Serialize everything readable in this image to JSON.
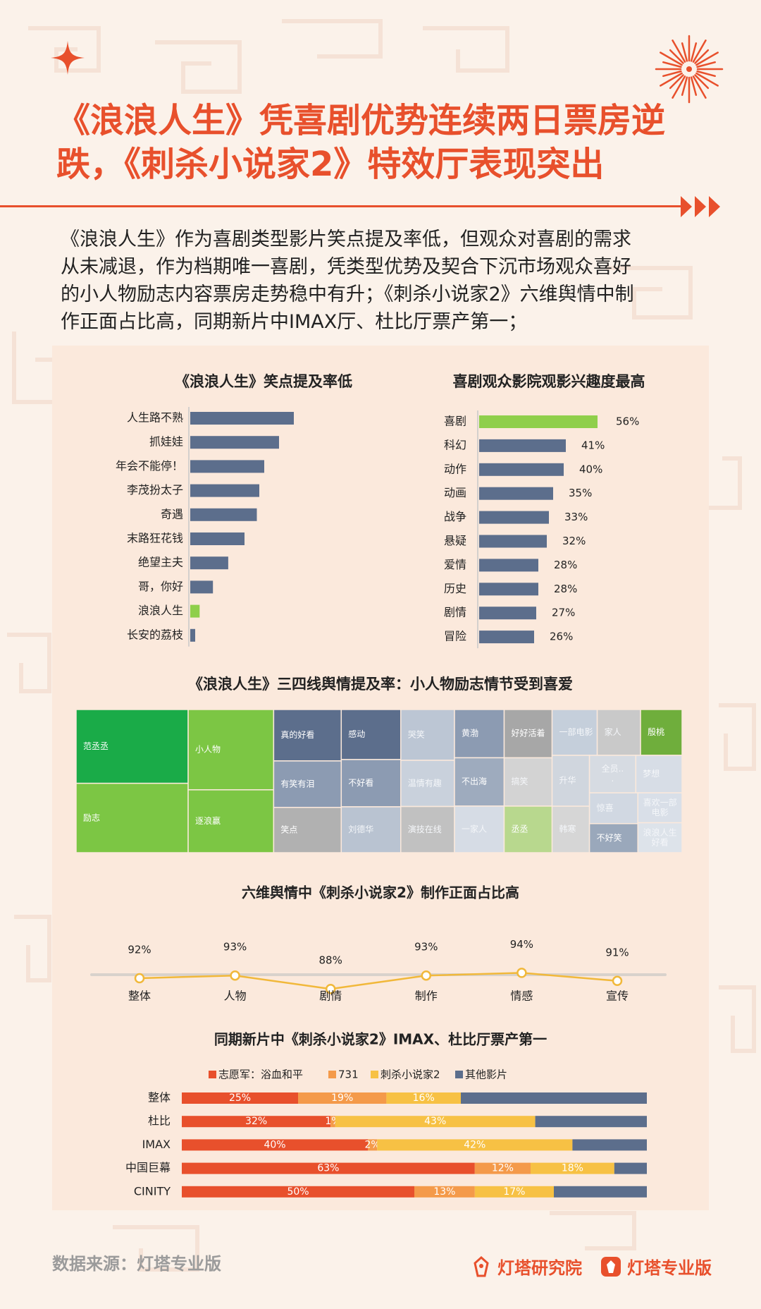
{
  "page": {
    "title_line1": "《浪浪人生》凭喜剧优势连续两日票房逆",
    "title_line2": "跌，《刺杀小说家2》特效厅表现突出",
    "intro_lines": [
      "《浪浪人生》作为喜剧类型影片笑点提及率低，但观众对喜剧的需求",
      "从未减退，作为档期唯一喜剧，凭类型优势及契合下沉市场观众喜好",
      "的小人物励志内容票房走势稳中有升；《刺杀小说家2》六维舆情中制",
      "作正面占比高，同期新片中IMAX厅、杜比厅票产第一；"
    ],
    "source": "数据来源：灯塔专业版",
    "brand_left": "灯塔研究院",
    "brand_right": "灯塔专业版"
  },
  "colors": {
    "accent": "#e8502c",
    "bar_blue": "#5c6e8c",
    "bar_green": "#8fcf4b",
    "line_yellow": "#f1b83a",
    "orange_light": "#f49a4a",
    "yellow": "#f7c144"
  },
  "chart_data": [
    {
      "type": "bar",
      "orientation": "horizontal",
      "title": "《浪浪人生》笑点提及率低",
      "categories": [
        "人生路不熟",
        "抓娃娃",
        "年会不能停！",
        "李茂扮太子",
        "奇遇",
        "末路狂花钱",
        "绝望主夫",
        "哥，你好",
        "浪浪人生",
        "长安的荔枝"
      ],
      "values": [
        21,
        18,
        15,
        14,
        13.5,
        11,
        7.7,
        4.6,
        1.9,
        1
      ],
      "highlight": "浪浪人生",
      "xlim": [
        0,
        40
      ]
    },
    {
      "type": "bar",
      "orientation": "horizontal",
      "title": "喜剧观众影院观影兴趣度最高",
      "categories": [
        "喜剧",
        "科幻",
        "动作",
        "动画",
        "战争",
        "悬疑",
        "爱情",
        "历史",
        "剧情",
        "冒险"
      ],
      "values": [
        56,
        41,
        40,
        35,
        33,
        32,
        28,
        28,
        27,
        26
      ],
      "data_labels": [
        "56%",
        "41%",
        "40%",
        "35%",
        "33%",
        "32%",
        "28%",
        "28%",
        "27%",
        "26%"
      ],
      "highlight": "喜剧",
      "xlim": [
        0,
        100
      ]
    },
    {
      "type": "heatmap",
      "title": "《浪浪人生》三四线舆情提及率：小人物励志情节受到喜爱",
      "cells": [
        {
          "label": "范丞丞",
          "value": 10,
          "color": "#1aab48"
        },
        {
          "label": "励志",
          "value": 9.4,
          "color": "#7cc644"
        },
        {
          "label": "逐浪赢",
          "value": 6.5,
          "color": "#7cc644"
        },
        {
          "label": "小人物",
          "value": 8.3,
          "color": "#7cc644"
        },
        {
          "label": "真的好看",
          "value": 4.2,
          "color": "#5c6e8c"
        },
        {
          "label": "感动",
          "value": 3.6,
          "color": "#5c6e8c"
        },
        {
          "label": "有笑有泪",
          "value": 3.8,
          "color": "#8c9bb2"
        },
        {
          "label": "不好看",
          "value": 3.4,
          "color": "#8c9bb2"
        },
        {
          "label": "黄渤",
          "value": 2.9,
          "color": "#8c9bb2"
        },
        {
          "label": "不出海",
          "value": 2.9,
          "color": "#9eabbe"
        },
        {
          "label": "丞丞",
          "value": 2.7,
          "color": "#b8d88e"
        },
        {
          "label": "刘德华",
          "value": 3.3,
          "color": "#b9c3d1"
        },
        {
          "label": "一家人",
          "value": 2.8,
          "color": "#d6dce5"
        },
        {
          "label": "哭笑",
          "value": 3.3,
          "color": "#bcc6d4"
        },
        {
          "label": "温情有趣",
          "value": 3,
          "color": "#c9d1dc"
        },
        {
          "label": "笑点",
          "value": 3.7,
          "color": "#b1b1b1"
        },
        {
          "label": "好好活着",
          "value": 2.8,
          "color": "#a7a7a7"
        },
        {
          "label": "演技在线",
          "value": 3,
          "color": "#c1c1c1"
        },
        {
          "label": "搞笑",
          "value": 2.8,
          "color": "#d3d3d3"
        },
        {
          "label": "家人",
          "value": 2.4,
          "color": "#c9c9c9"
        },
        {
          "label": "殷桃",
          "value": 2.3,
          "color": "#6fae3c"
        },
        {
          "label": "韩寒",
          "value": 2.1,
          "color": "#d6d6d6"
        },
        {
          "label": "一部电影",
          "value": 2.5,
          "color": "#c5cfdb"
        },
        {
          "label": "全员...",
          "value": 2.1,
          "color": "#d6dbe2"
        },
        {
          "label": "升华",
          "value": 2.3,
          "color": "#d0d6de"
        },
        {
          "label": "梦想",
          "value": 2.1,
          "color": "#d7dde6"
        },
        {
          "label": "喜欢一部电影",
          "value": 1.6,
          "color": "#d9dfe8"
        },
        {
          "label": "不好笑",
          "value": 1.7,
          "color": "#9aa8bb"
        },
        {
          "label": "惊喜",
          "value": 1.8,
          "color": "#d1d8e2"
        },
        {
          "label": "浪浪人生好看",
          "value": 1.6,
          "color": "#dde3ea"
        }
      ]
    },
    {
      "type": "line",
      "title": "六维舆情中《刺杀小说家2》制作正面占比高",
      "categories": [
        "整体",
        "人物",
        "剧情",
        "制作",
        "情感",
        "宣传"
      ],
      "values": [
        92,
        93,
        88,
        93,
        94,
        91
      ],
      "data_labels": [
        "92%",
        "93%",
        "88%",
        "93%",
        "94%",
        "91%"
      ],
      "ylim": [
        70,
        100
      ]
    },
    {
      "type": "bar",
      "orientation": "horizontal",
      "stacked": true,
      "title": "同期新片中《刺杀小说家2》IMAX、杜比厅票产第一",
      "categories": [
        "整体",
        "杜比",
        "IMAX",
        "中国巨幕",
        "CINITY"
      ],
      "legend_position": "top",
      "series": [
        {
          "name": "志愿军：浴血和平",
          "color": "#e8502c",
          "values": [
            25,
            32,
            40,
            63,
            50
          ],
          "labels": [
            "25%",
            "32%",
            "40%",
            "63%",
            "50%"
          ]
        },
        {
          "name": "731",
          "color": "#f49a4a",
          "values": [
            19,
            1,
            2,
            12,
            13
          ],
          "labels": [
            "19%",
            "1%",
            "2%",
            "12%",
            "13%"
          ]
        },
        {
          "name": "刺杀小说家2",
          "color": "#f7c144",
          "values": [
            16,
            43,
            42,
            18,
            17
          ],
          "labels": [
            "16%",
            "43%",
            "42%",
            "18%",
            "17%"
          ]
        },
        {
          "name": "其他影片",
          "color": "#5c6e8c",
          "values": [
            40,
            24,
            16,
            7,
            20
          ]
        }
      ]
    }
  ]
}
